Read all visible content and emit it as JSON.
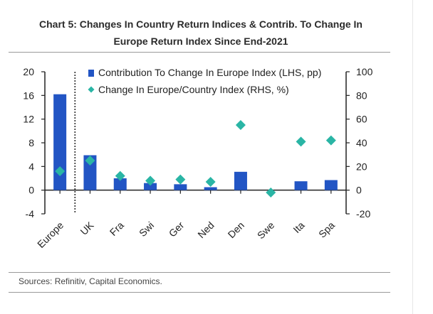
{
  "header": {
    "title_line1": "Chart 5: Changes In Country Return Indices & Contrib. To Change In",
    "title_line2": "Europe Return Index Since End-2021"
  },
  "footer": {
    "source": "Sources: Refinitiv, Capital Economics."
  },
  "colors": {
    "bar": "#2255c4",
    "marker": "#2ab5a5",
    "axis": "#222222"
  },
  "chart_data": {
    "type": "bar",
    "categories": [
      "Europe",
      "UK",
      "Fra",
      "Swi",
      "Ger",
      "Ned",
      "Den",
      "Swe",
      "Ita",
      "Spa"
    ],
    "series": [
      {
        "name": "Contribution To Change In Europe Index (LHS, pp)",
        "type": "bar",
        "axis": "left",
        "values": [
          16.2,
          5.9,
          2.0,
          1.2,
          1.0,
          0.5,
          3.1,
          0.0,
          1.5,
          1.7
        ]
      },
      {
        "name": "Change In Europe/Country Index (RHS, %)",
        "type": "scatter",
        "marker": "diamond",
        "axis": "right",
        "values": [
          16,
          25,
          12,
          8,
          9,
          7,
          55,
          -2,
          41,
          42
        ]
      }
    ],
    "left_axis": {
      "ylim": [
        -4,
        20
      ],
      "ticks": [
        "20",
        "16",
        "12",
        "8",
        "4",
        "0",
        "-4"
      ],
      "tick_values": [
        20,
        16,
        12,
        8,
        4,
        0,
        -4
      ]
    },
    "right_axis": {
      "ylim": [
        -20,
        100
      ],
      "ticks": [
        "100",
        "80",
        "60",
        "40",
        "20",
        "0",
        "-20"
      ],
      "tick_values": [
        100,
        80,
        60,
        40,
        20,
        0,
        -20
      ]
    },
    "divider_after_category": "Europe",
    "legend_placement": "top-center",
    "grid": false
  }
}
